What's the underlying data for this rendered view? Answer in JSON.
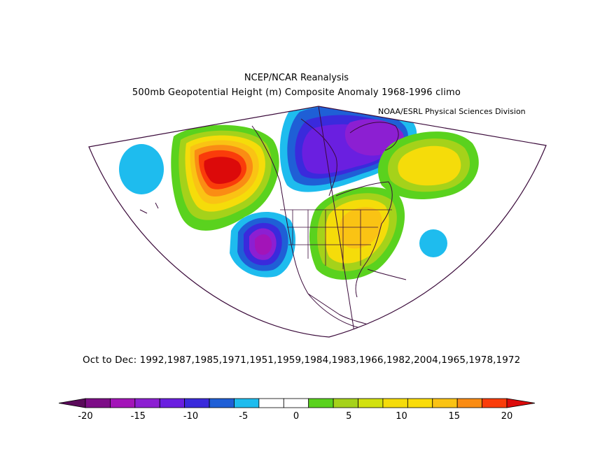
{
  "header": {
    "title": "NCEP/NCAR Reanalysis",
    "subtitle": "500mb Geopotential Height (m) Composite Anomaly 1968-1996 climo",
    "credit": "NOAA/ESRL Physical Sciences Division"
  },
  "period_label": "Oct to Dec: 1992,1987,1985,1971,1951,1959,1984,1983,1966,1982,2004,1965,1978,1972",
  "colorbar": {
    "colors": [
      "#5a0a5a",
      "#7d0d87",
      "#a314b8",
      "#8c1fd2",
      "#6a1fe0",
      "#3a2adc",
      "#1f5fd6",
      "#1ebcee",
      "#ffffff",
      "#ffffff",
      "#5ad21e",
      "#a5d21a",
      "#d2e10f",
      "#f5dc0a",
      "#fadc0a",
      "#fac314",
      "#fa8c14",
      "#fa3c0a",
      "#dc0a0a"
    ],
    "ticks": [
      {
        "label": "-20",
        "value": -20
      },
      {
        "label": "-15",
        "value": -15
      },
      {
        "label": "-10",
        "value": -10
      },
      {
        "label": "-5",
        "value": -5
      },
      {
        "label": "0",
        "value": 0
      },
      {
        "label": "5",
        "value": 5
      },
      {
        "label": "10",
        "value": 10
      },
      {
        "label": "15",
        "value": 15
      },
      {
        "label": "20",
        "value": 20
      }
    ]
  },
  "anomaly_features": [
    {
      "id": "pacific-ridge",
      "sign": "positive",
      "peak_value": 20
    },
    {
      "id": "west-coast-trough",
      "sign": "negative",
      "peak_value": -15
    },
    {
      "id": "canada-trough",
      "sign": "negative",
      "peak_value": -15
    },
    {
      "id": "eastern-us-ridge",
      "sign": "positive",
      "peak_value": 10
    },
    {
      "id": "north-atlantic-ridge",
      "sign": "positive",
      "peak_value": 10
    },
    {
      "id": "central-pacific-low",
      "sign": "negative",
      "peak_value": -5
    },
    {
      "id": "atlantic-small-low",
      "sign": "negative",
      "peak_value": -5
    }
  ]
}
